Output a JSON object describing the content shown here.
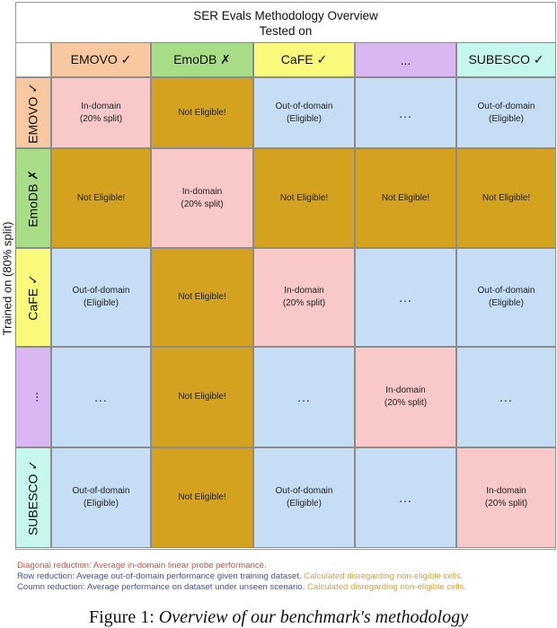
{
  "title": {
    "line1": "SER Evals Methodology Overview",
    "line2": "Tested on"
  },
  "y_axis_label": "Trained on (80% split)",
  "columns": [
    {
      "label": "EMOVO ✓",
      "color": "#f8c8a0"
    },
    {
      "label": "EmoDB ✗",
      "color": "#a6dd86"
    },
    {
      "label": "CaFE ✓",
      "color": "#f9f97c"
    },
    {
      "label": "...",
      "color": "#d9b7f3"
    },
    {
      "label": "SUBESCO ✓",
      "color": "#c6f7ef"
    }
  ],
  "rows": [
    {
      "label": "EMOVO ✓",
      "color": "#f8c8a0",
      "cells": [
        "In-domain\n(20% split)",
        "Not Eligible!",
        "Out-of-domain\n(Eligible)",
        "...",
        "Out-of-domain\n(Eligible)"
      ]
    },
    {
      "label": "EmoDB ✗",
      "color": "#a6dd86",
      "cells": [
        "Not Eligible!",
        "In-domain\n(20% split)",
        "Not Eligible!",
        "Not Eligible!",
        "Not Eligible!"
      ]
    },
    {
      "label": "CaFE ✓",
      "color": "#f9f97c",
      "cells": [
        "Out-of-domain\n(Eligible)",
        "Not Eligible!",
        "In-domain\n(20% split)",
        "...",
        "Out-of-domain\n(Eligible)"
      ]
    },
    {
      "label": "...",
      "color": "#d9b7f3",
      "cells": [
        "...",
        "Not Eligible!",
        "...",
        "In-domain\n(20% split)",
        "..."
      ]
    },
    {
      "label": "SUBESCO ✓",
      "color": "#c6f7ef",
      "cells": [
        "Out-of-domain\n(Eligible)",
        "Not Eligible!",
        "Out-of-domain\n(Eligible)",
        "...",
        "In-domain\n(20% split)"
      ]
    }
  ],
  "cell_colors": {
    "in_domain": "#f9c9c9",
    "not_eligible": "#d4a21f",
    "out_of_domain": "#c6def5",
    "ellipsis": "#c6def5"
  },
  "notes": {
    "diagonal": "Diagonal reduction: Average in-domain linear probe performance.",
    "row_prefix": "Row reduction: Average out-of-domain performance given training dataset. ",
    "row_suffix": "Calculated disregarding  non-eligible cells.",
    "column_prefix": "Coumn reduction: Average performance on dataset under unseen scenario. ",
    "column_suffix": "Calculated disregarding  non-eligible cells.",
    "colors": {
      "diagonal": "#e0473a",
      "reduction": "#3f4fa8",
      "disregard": "#e0a020"
    }
  },
  "caption": {
    "prefix": "Figure 1: ",
    "text": "Overview of our benchmark's methodology"
  }
}
